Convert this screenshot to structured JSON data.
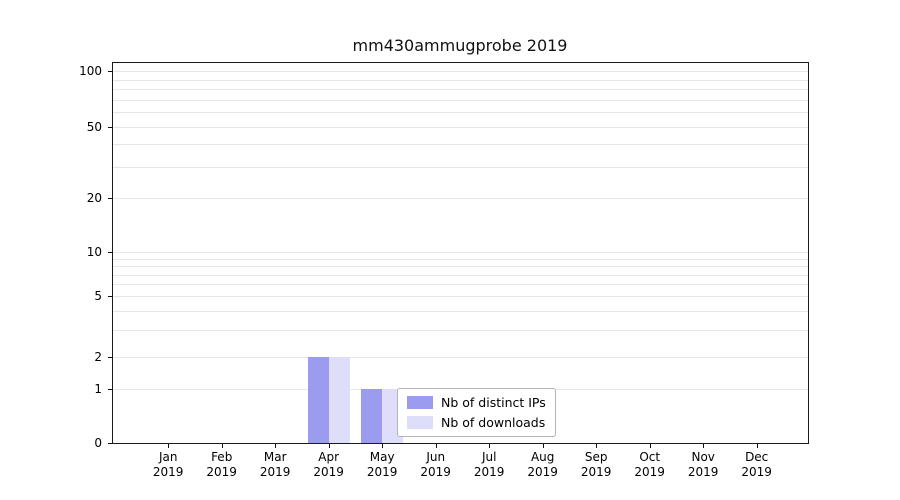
{
  "chart_data": {
    "type": "bar",
    "title": "mm430ammugprobe 2019",
    "categories": [
      "Jan",
      "Feb",
      "Mar",
      "Apr",
      "May",
      "Jun",
      "Jul",
      "Aug",
      "Sep",
      "Oct",
      "Nov",
      "Dec"
    ],
    "x_year_label": "2019",
    "series": [
      {
        "name": "Nb of distinct IPs",
        "color": "#9b9bf0",
        "values": [
          0,
          0,
          0,
          2,
          1,
          0,
          0,
          0,
          0,
          0,
          0,
          0
        ]
      },
      {
        "name": "Nb of downloads",
        "color": "#dedefb",
        "values": [
          0,
          0,
          0,
          2,
          1,
          0,
          0,
          0,
          0,
          0,
          0,
          0
        ]
      }
    ],
    "yticks": [
      0,
      1,
      2,
      5,
      10,
      20,
      50,
      100
    ],
    "ylim": [
      0,
      110
    ],
    "yscale": "log-like",
    "grid": true,
    "grid_color": "#e7e7e7",
    "legend_position": "lower-center",
    "axis_color": "#000000"
  }
}
